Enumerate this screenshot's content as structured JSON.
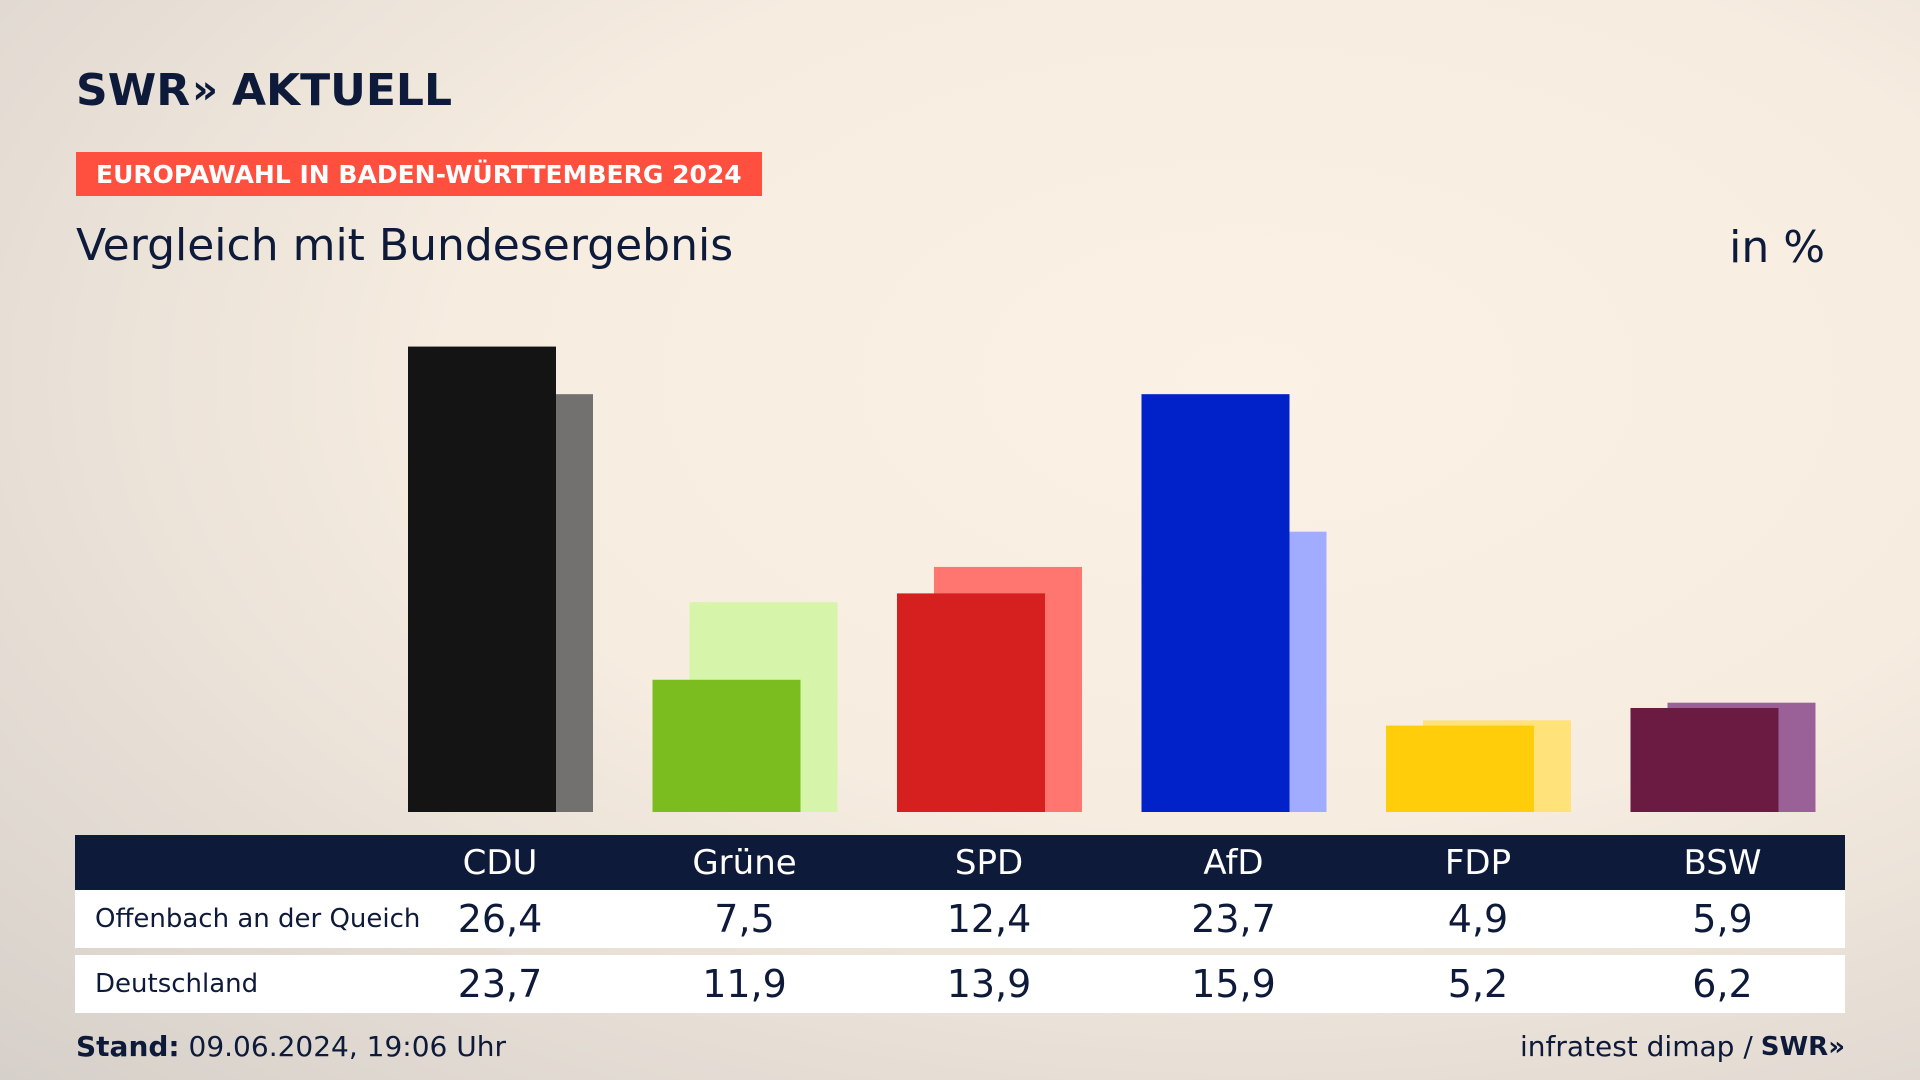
{
  "brand": {
    "logo_left": "SWR",
    "logo_chevron": "»",
    "logo_right": "AKTUELL"
  },
  "badge": "EUROPAWAHL IN BADEN-WÜRTTEMBERG 2024",
  "subtitle": "Vergleich mit Bundesergebnis",
  "unit": "in %",
  "table": {
    "rows": [
      {
        "label": "Offenbach an der Queich"
      },
      {
        "label": "Deutschland"
      }
    ]
  },
  "footer": {
    "stand_label": "Stand:",
    "stand_value": "09.06.2024, 19:06 Uhr",
    "source": "infratest dimap /",
    "source_logo": "SWR»"
  },
  "chart_data": {
    "type": "bar",
    "categories": [
      "CDU",
      "Grüne",
      "SPD",
      "AfD",
      "FDP",
      "BSW"
    ],
    "series": [
      {
        "name": "Offenbach an der Queich",
        "values": [
          26.4,
          7.5,
          12.4,
          23.7,
          4.9,
          5.9
        ],
        "colors": [
          "#141414",
          "#7bbd1e",
          "#d61f1f",
          "#0022c8",
          "#ffcd0a",
          "#6b1a42"
        ]
      },
      {
        "name": "Deutschland",
        "values": [
          23.7,
          11.9,
          13.9,
          15.9,
          5.2,
          6.2
        ],
        "colors": [
          "#727170",
          "#d6f5aa",
          "#ff7670",
          "#a1acff",
          "#ffe27a",
          "#9a6198"
        ]
      }
    ],
    "ylim": [
      0,
      27
    ],
    "grid": false,
    "legend": "none"
  }
}
